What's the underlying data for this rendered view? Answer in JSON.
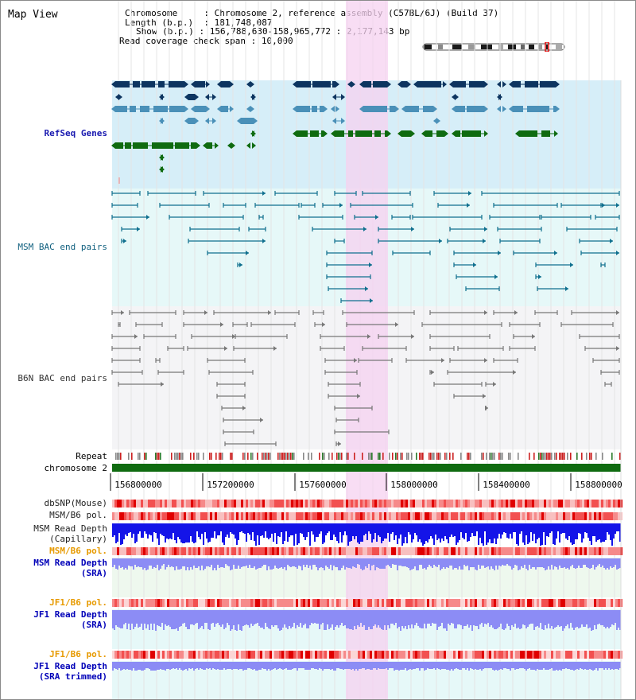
{
  "title": "Map View",
  "info": {
    "chromosome_label": "Chromosome",
    "chromosome_value": "Chromosome 2, reference assembly (C57BL/6J) (Build 37)",
    "length_label": "Length (b.p.)",
    "length_value": "181,748,087",
    "show_label": "Show (b.p.)",
    "show_value": "156,788,630-158,965,772 : 2,177,143 bp",
    "coverage_label": "Read coverage check span",
    "coverage_value": "10,000"
  },
  "tracks": {
    "refseq": "RefSeq Genes",
    "msm_bac": "MSM BAC end pairs",
    "b6n_bac": "B6N BAC end pairs",
    "repeat": "Repeat",
    "chromosome": "chromosome 2",
    "dbsnp": "dbSNP(Mouse)",
    "msm_b6_pol_1": "MSM/B6 pol.",
    "msm_read_depth_cap": "MSM Read Depth\n(Capillary)",
    "msm_b6_pol_2": "MSM/B6 pol.",
    "msm_read_depth_sra": "MSM Read Depth\n(SRA)",
    "jf1_b6_pol_1": "JF1/B6 pol.",
    "jf1_read_depth_sra": "JF1 Read Depth\n(SRA)",
    "jf1_b6_pol_2": "JF1/B6 pol.",
    "jf1_read_depth_trim": "JF1 Read Depth\n(SRA trimmed)"
  },
  "axis": {
    "ticks": [
      "156800000",
      "157200000",
      "157600000",
      "158000000",
      "158400000",
      "158800000"
    ]
  },
  "colors": {
    "refseq_bg": "#d6eef8",
    "bac_bg": "#e6f8f8",
    "highlight": "#f5d2f0",
    "gene_navy": "#0d3560",
    "gene_steel": "#4a90b8",
    "gene_green": "#0f6b10",
    "chrom_green": "#0f6b10",
    "bac_teal": "#0f6f8e",
    "bac_gray": "#777777",
    "snp_red": "#f24a4a",
    "depth_blue_dark": "#1414e8",
    "depth_blue_light": "#8c8cf5"
  }
}
